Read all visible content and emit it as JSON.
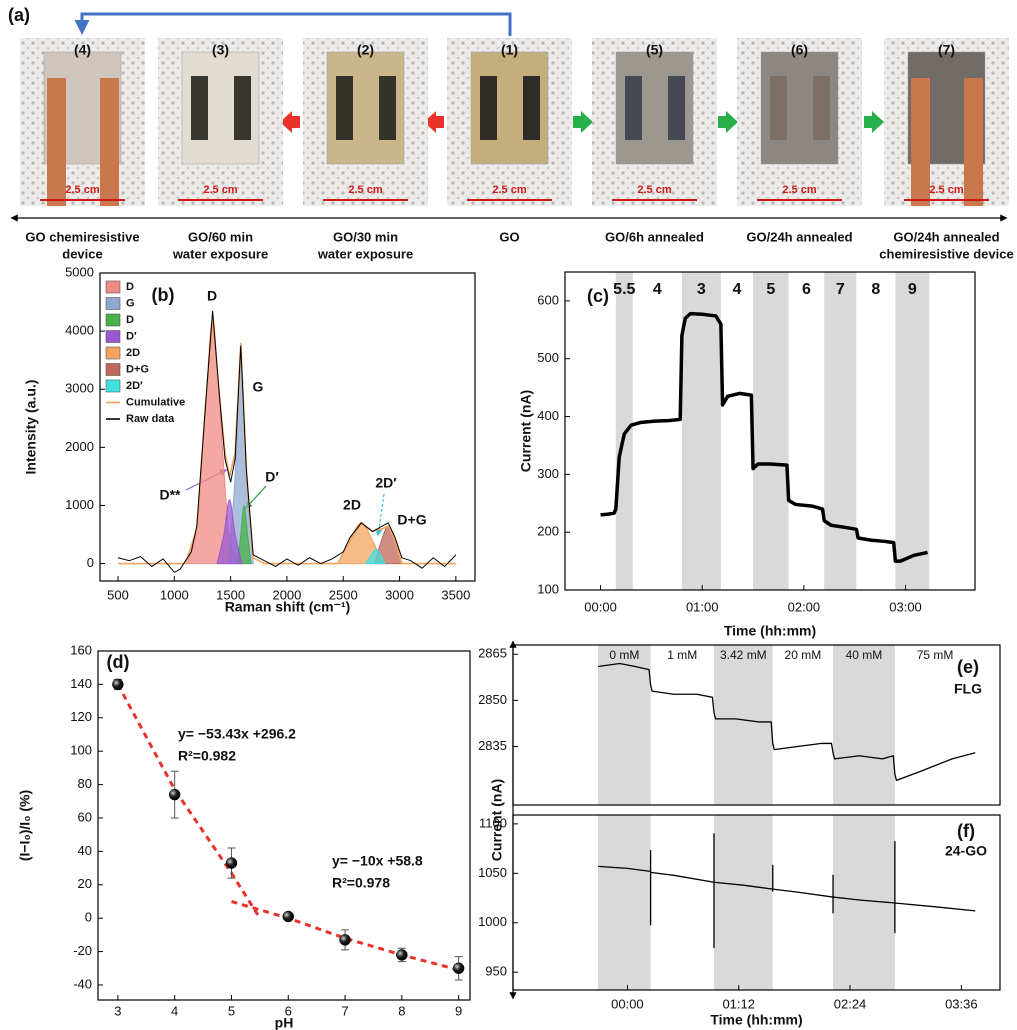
{
  "panel_a": {
    "label": "(a)",
    "photos": [
      {
        "label": "(4)",
        "scale": "2.5 cm",
        "caption": [
          "GO chemiresistive",
          "device"
        ]
      },
      {
        "label": "(3)",
        "scale": "2.5 cm",
        "caption": [
          "GO/60 min",
          "water exposure"
        ]
      },
      {
        "label": "(2)",
        "scale": "2.5 cm",
        "caption": [
          "GO/30 min",
          "water exposure"
        ]
      },
      {
        "label": "(1)",
        "scale": "2.5 cm",
        "caption": [
          "GO"
        ]
      },
      {
        "label": "(5)",
        "scale": "2.5 cm",
        "caption": [
          "GO/6h annealed"
        ]
      },
      {
        "label": "(6)",
        "scale": "2.5 cm",
        "caption": [
          "GO/24h annealed"
        ]
      },
      {
        "label": "(7)",
        "scale": "2.5 cm",
        "caption": [
          "GO/24h annealed",
          "chemiresistive device"
        ]
      }
    ]
  },
  "chart_data": [
    {
      "type": "area",
      "panel_label": "(b)",
      "xlabel": "Raman shift (cm⁻¹)",
      "ylabel": "Intensity (a.u.)",
      "xlim": [
        340,
        3670
      ],
      "ylim": [
        -300,
        5000
      ],
      "xticks": [
        500,
        1000,
        1500,
        2000,
        2500,
        3000,
        3500
      ],
      "yticks": [
        0,
        1000,
        2000,
        3000,
        4000,
        5000
      ],
      "annotations": [
        "D",
        "G",
        "D**",
        "D′",
        "2D",
        "2D′",
        "D+G"
      ],
      "series": [
        {
          "name": "D",
          "style": "area",
          "color": "#f08a84",
          "x": [
            1100,
            1200,
            1280,
            1340,
            1400,
            1480,
            1560
          ],
          "values": [
            0,
            600,
            2800,
            4200,
            2800,
            600,
            0
          ]
        },
        {
          "name": "G",
          "style": "area",
          "color": "#8fa8d0",
          "x": [
            1480,
            1540,
            1590,
            1640,
            1700
          ],
          "values": [
            0,
            1500,
            3600,
            1500,
            0
          ]
        },
        {
          "name": "D",
          "style": "area",
          "color": "#46b04a",
          "x": [
            1560,
            1590,
            1620,
            1650,
            1680
          ],
          "values": [
            0,
            500,
            1000,
            500,
            0
          ]
        },
        {
          "name": "D′",
          "style": "area",
          "color": "#9b59d0",
          "x": [
            1380,
            1440,
            1490,
            1540,
            1600
          ],
          "values": [
            0,
            500,
            1100,
            500,
            0
          ]
        },
        {
          "name": "2D",
          "style": "area",
          "color": "#f4a460",
          "x": [
            2450,
            2560,
            2660,
            2760,
            2850
          ],
          "values": [
            0,
            400,
            700,
            400,
            0
          ]
        },
        {
          "name": "D+G",
          "style": "area",
          "color": "#c0675a",
          "x": [
            2780,
            2840,
            2900,
            2960,
            3020
          ],
          "values": [
            0,
            400,
            650,
            400,
            0
          ]
        },
        {
          "name": "2D′",
          "style": "area",
          "color": "#40e0e0",
          "x": [
            2700,
            2750,
            2790,
            2830,
            2870
          ],
          "values": [
            0,
            150,
            250,
            150,
            0
          ]
        },
        {
          "name": "Cumulative",
          "style": "line",
          "color": "#f4a460",
          "x": [
            500,
            1000,
            1100,
            1200,
            1280,
            1340,
            1400,
            1450,
            1490,
            1540,
            1590,
            1640,
            1700,
            1800,
            2450,
            2560,
            2660,
            2760,
            2850,
            2900,
            2960,
            3020,
            3500
          ],
          "values": [
            0,
            0,
            0,
            600,
            2800,
            4200,
            2900,
            1900,
            1500,
            1900,
            3800,
            1600,
            100,
            0,
            0,
            400,
            700,
            560,
            600,
            650,
            400,
            0,
            0
          ]
        },
        {
          "name": "Raw data",
          "style": "line",
          "color": "#000000",
          "x": [
            500,
            600,
            700,
            800,
            900,
            1000,
            1050,
            1100,
            1150,
            1200,
            1280,
            1340,
            1400,
            1450,
            1500,
            1540,
            1590,
            1640,
            1700,
            1800,
            1900,
            2000,
            2100,
            2200,
            2300,
            2400,
            2500,
            2560,
            2660,
            2760,
            2850,
            2900,
            2960,
            3020,
            3100,
            3200,
            3300,
            3400,
            3500
          ],
          "values": [
            100,
            50,
            120,
            -50,
            80,
            -150,
            -100,
            50,
            200,
            650,
            2800,
            4350,
            2900,
            1800,
            1400,
            1800,
            3750,
            1600,
            150,
            50,
            -50,
            80,
            -30,
            100,
            0,
            80,
            200,
            450,
            700,
            550,
            650,
            700,
            450,
            100,
            50,
            -80,
            100,
            -50,
            150
          ]
        }
      ]
    },
    {
      "type": "line",
      "panel_label": "(c)",
      "xlabel": "Time (hh:mm)",
      "ylabel": "Current (nA)",
      "color": "#000000",
      "xlim": [
        -21,
        221
      ],
      "ylim": [
        100,
        650
      ],
      "xticks": [
        {
          "value": 0,
          "label": "00:00"
        },
        {
          "value": 60,
          "label": "01:00"
        },
        {
          "value": 120,
          "label": "02:00"
        },
        {
          "value": 180,
          "label": "03:00"
        }
      ],
      "yticks": [
        100,
        200,
        300,
        400,
        500,
        600
      ],
      "regions": [
        {
          "label": "5.5",
          "start": 9,
          "end": 19,
          "shaded": true
        },
        {
          "label": "4",
          "start": 19,
          "end": 48,
          "shaded": false
        },
        {
          "label": "3",
          "start": 48,
          "end": 71,
          "shaded": true
        },
        {
          "label": "4",
          "start": 71,
          "end": 90,
          "shaded": false
        },
        {
          "label": "5",
          "start": 90,
          "end": 111,
          "shaded": true
        },
        {
          "label": "6",
          "start": 111,
          "end": 132,
          "shaded": false
        },
        {
          "label": "7",
          "start": 132,
          "end": 151,
          "shaded": true
        },
        {
          "label": "8",
          "start": 151,
          "end": 174,
          "shaded": false
        },
        {
          "label": "9",
          "start": 174,
          "end": 194,
          "shaded": true
        }
      ],
      "x": [
        0,
        4,
        8,
        9,
        11,
        14,
        18,
        24,
        32,
        40,
        47,
        48,
        50,
        53,
        60,
        68,
        71,
        72,
        75,
        82,
        89,
        90,
        93,
        100,
        110,
        111,
        115,
        125,
        131,
        132,
        136,
        145,
        151,
        152,
        160,
        168,
        173,
        174,
        177,
        185,
        193
      ],
      "values": [
        230,
        231,
        233,
        240,
        330,
        370,
        385,
        390,
        392,
        393,
        395,
        540,
        570,
        578,
        577,
        574,
        560,
        420,
        435,
        440,
        437,
        310,
        318,
        318,
        316,
        255,
        248,
        245,
        240,
        220,
        212,
        208,
        205,
        190,
        186,
        184,
        182,
        150,
        150,
        160,
        165
      ]
    },
    {
      "type": "scatter",
      "panel_label": "(d)",
      "xlabel": "pH",
      "ylabel": "(I−I₀)/I₀ (%)",
      "color": "#000000",
      "fit_color": "#e8322a",
      "xlim": [
        2.65,
        9.2
      ],
      "ylim": [
        -49,
        160
      ],
      "xticks": [
        3,
        4,
        5,
        6,
        7,
        8,
        9
      ],
      "yticks": [
        -40,
        -20,
        0,
        20,
        40,
        60,
        80,
        100,
        120,
        140,
        160
      ],
      "x": [
        3,
        4,
        5,
        6,
        7,
        8,
        9
      ],
      "values": [
        140,
        74,
        33,
        1,
        -13,
        -22,
        -30
      ],
      "errors": [
        3,
        14,
        9,
        2,
        6,
        4,
        7
      ],
      "fits": [
        {
          "equation": "y= −53.43x +296.2",
          "r2": "R²=0.982",
          "x": [
            3,
            4,
            5,
            5.5
          ],
          "values": [
            140,
            77,
            27,
            0
          ]
        },
        {
          "equation": "y= −10x +58.8",
          "r2": "R²=0.978",
          "x": [
            5,
            5.5,
            6,
            7,
            8,
            9
          ],
          "values": [
            10,
            5,
            0,
            -12,
            -22,
            -31
          ]
        }
      ]
    },
    {
      "type": "line",
      "panel_label": "(e)",
      "annotation": "FLG",
      "color": "#000000",
      "xlim": [
        -74,
        241
      ],
      "ylim": [
        2816,
        2868
      ],
      "yticks": [
        2835,
        2850,
        2865
      ],
      "regions": [
        {
          "label": "0 mM",
          "start": -19,
          "end": 15,
          "shaded": true
        },
        {
          "label": "1 mM",
          "start": 15,
          "end": 56,
          "shaded": false
        },
        {
          "label": "3.42 mM",
          "start": 56,
          "end": 94,
          "shaded": true
        },
        {
          "label": "20 mM",
          "start": 94,
          "end": 133,
          "shaded": false
        },
        {
          "label": "40 mM",
          "start": 133,
          "end": 173,
          "shaded": true
        },
        {
          "label": "75 mM",
          "start": 173,
          "end": 225,
          "shaded": false
        }
      ],
      "x": [
        -19,
        -5,
        5,
        14,
        15,
        16,
        30,
        45,
        55,
        56,
        57,
        70,
        85,
        93,
        94,
        95,
        110,
        125,
        132,
        133,
        134,
        150,
        165,
        172,
        173,
        174,
        190,
        210,
        225
      ],
      "values": [
        2861,
        2862,
        2861,
        2860,
        2855,
        2853,
        2852,
        2852,
        2851,
        2846,
        2844,
        2844,
        2843,
        2843,
        2836,
        2834,
        2835,
        2836,
        2836,
        2833,
        2831,
        2832,
        2831,
        2832,
        2826,
        2824,
        2827,
        2831,
        2833
      ]
    },
    {
      "type": "line",
      "panel_label": "(f)",
      "annotation": "24-GO",
      "xlabel": "Time (hh:mm)",
      "ylabel": "Current (nA)",
      "color": "#000000",
      "xlim": [
        -74,
        241
      ],
      "ylim": [
        932,
        1109
      ],
      "yticks": [
        950,
        1000,
        1050,
        1100
      ],
      "xticks": [
        {
          "value": 0,
          "label": "00:00"
        },
        {
          "value": 72,
          "label": "01:12"
        },
        {
          "value": 144,
          "label": "02:24"
        },
        {
          "value": 216,
          "label": "03:36"
        }
      ],
      "regions": [
        {
          "start": -19,
          "end": 15,
          "shaded": true
        },
        {
          "start": 15,
          "end": 56,
          "shaded": false
        },
        {
          "start": 56,
          "end": 94,
          "shaded": true
        },
        {
          "start": 94,
          "end": 133,
          "shaded": false
        },
        {
          "start": 133,
          "end": 173,
          "shaded": true
        },
        {
          "start": 173,
          "end": 225,
          "shaded": false
        }
      ],
      "x": [
        -19,
        0,
        15,
        15,
        15,
        15,
        30,
        56,
        56,
        56,
        56,
        75,
        94,
        94,
        94,
        94,
        110,
        133,
        133,
        133,
        133,
        150,
        173,
        173,
        173,
        173,
        200,
        225
      ],
      "values": [
        1057,
        1055,
        1052,
        1073,
        998,
        1051,
        1048,
        1041,
        1090,
        975,
        1041,
        1038,
        1034,
        1058,
        1032,
        1034,
        1031,
        1026,
        1048,
        1010,
        1026,
        1023,
        1020,
        1082,
        990,
        1020,
        1016,
        1012
      ]
    }
  ]
}
